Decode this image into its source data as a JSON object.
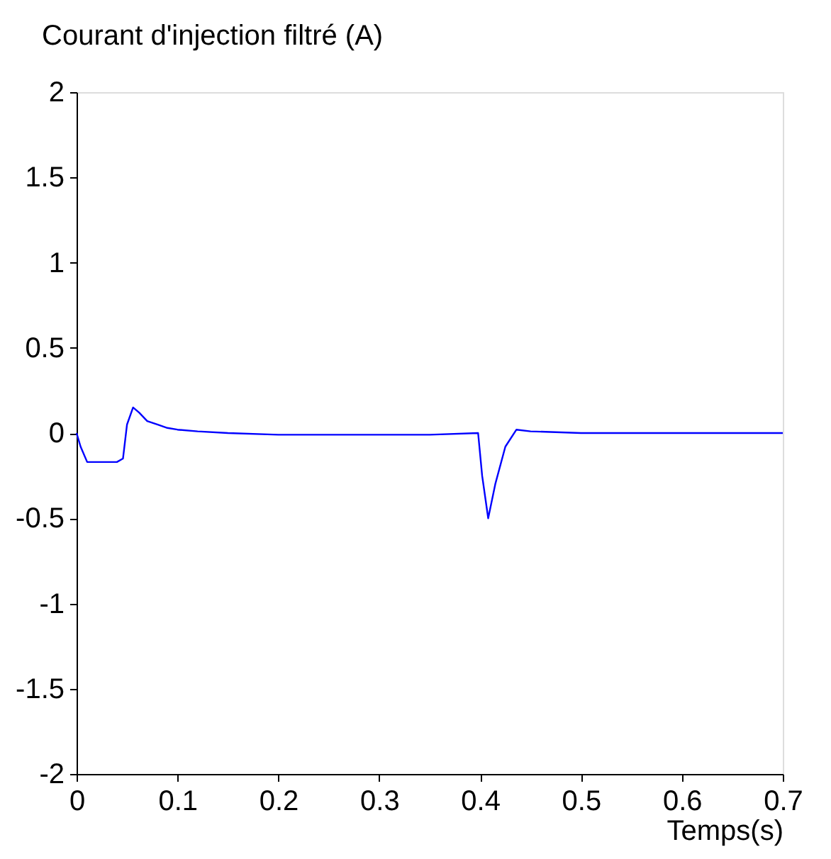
{
  "chart_data": {
    "type": "line",
    "ylabel": "Courant d'injection filtré (A)",
    "xlabel": "Temps(s)",
    "x": [
      0,
      0.004,
      0.0105,
      0.02,
      0.03,
      0.04,
      0.046,
      0.05,
      0.056,
      0.062,
      0.07,
      0.08,
      0.09,
      0.1,
      0.12,
      0.15,
      0.2,
      0.25,
      0.3,
      0.35,
      0.398,
      0.402,
      0.408,
      0.415,
      0.425,
      0.436,
      0.45,
      0.5,
      0.55,
      0.6,
      0.65,
      0.7
    ],
    "series": [
      {
        "color": "#0000ff",
        "values": [
          0,
          -0.08,
          -0.17,
          -0.17,
          -0.17,
          -0.17,
          -0.15,
          0.05,
          0.15,
          0.12,
          0.07,
          0.05,
          0.03,
          0.02,
          0.01,
          0.0,
          -0.01,
          -0.01,
          -0.01,
          -0.01,
          0,
          -0.25,
          -0.5,
          -0.3,
          -0.08,
          0.02,
          0.01,
          0.0,
          0.0,
          0.0,
          0.0,
          0.0
        ]
      }
    ],
    "xlim": [
      0,
      0.7
    ],
    "xticks": [
      0,
      0.1,
      0.2,
      0.3,
      0.4,
      0.5,
      0.6,
      0.7
    ],
    "ylim": [
      -2,
      2
    ],
    "yticks": [
      -2,
      -1.5,
      -1,
      -0.5,
      0,
      0.5,
      1,
      1.5,
      2
    ],
    "grid": false,
    "marker": "none",
    "line_style": "solid"
  }
}
